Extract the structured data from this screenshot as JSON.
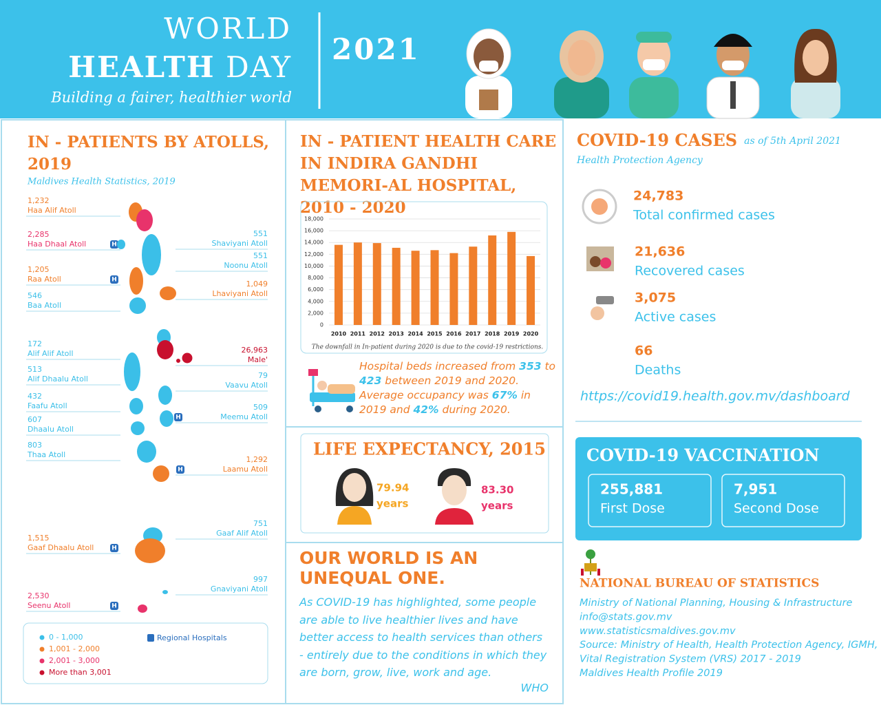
{
  "header": {
    "title_line1": "WORLD",
    "title_bold": "HEALTH",
    "title_rest": "DAY",
    "year": "2021",
    "subtitle": "Building a fairer, healthier world"
  },
  "atolls_panel": {
    "title": "IN - PATIENTS BY ATOLLS, 2019",
    "source": "Maldives Health Statistics, 2019",
    "colors": [
      "#3bbfe8",
      "#f07f2b",
      "#e8336b",
      "#c8102e"
    ],
    "atolls": [
      {
        "count": "1,232",
        "name": "Haa Alif Atoll",
        "level": 1,
        "hospital": false
      },
      {
        "count": "2,285",
        "name": "Haa Dhaal Atoll",
        "level": 2,
        "hospital": true
      },
      {
        "count": "551",
        "name": "Shaviyani Atoll",
        "level": 0,
        "hospital": false
      },
      {
        "count": "551",
        "name": "Noonu Atoll",
        "level": 0,
        "hospital": false
      },
      {
        "count": "1,205",
        "name": "Raa Atoll",
        "level": 1,
        "hospital": true
      },
      {
        "count": "1,049",
        "name": "Lhaviyani Atoll",
        "level": 1,
        "hospital": false
      },
      {
        "count": "546",
        "name": "Baa Atoll",
        "level": 0,
        "hospital": false
      },
      {
        "count": "172",
        "name": "Alif Alif Atoll",
        "level": 0,
        "hospital": false
      },
      {
        "count": "26,963",
        "name": "Male'",
        "level": 3,
        "hospital": false
      },
      {
        "count": "513",
        "name": "Alif Dhaalu Atoll",
        "level": 0,
        "hospital": false
      },
      {
        "count": "79",
        "name": "Vaavu Atoll",
        "level": 0,
        "hospital": false
      },
      {
        "count": "432",
        "name": "Faafu Atoll",
        "level": 0,
        "hospital": false
      },
      {
        "count": "509",
        "name": "Meemu Atoll",
        "level": 0,
        "hospital": true
      },
      {
        "count": "607",
        "name": "Dhaalu Atoll",
        "level": 0,
        "hospital": false
      },
      {
        "count": "803",
        "name": "Thaa Atoll",
        "level": 0,
        "hospital": false
      },
      {
        "count": "1,292",
        "name": "Laamu Atoll",
        "level": 1,
        "hospital": true
      },
      {
        "count": "751",
        "name": "Gaaf Alif Atoll",
        "level": 0,
        "hospital": false
      },
      {
        "count": "1,515",
        "name": "Gaaf Dhaalu Atoll",
        "level": 1,
        "hospital": true
      },
      {
        "count": "997",
        "name": "Gnaviyani Atoll",
        "level": 0,
        "hospital": false
      },
      {
        "count": "2,530",
        "name": "Seenu Atoll",
        "level": 2,
        "hospital": true
      }
    ],
    "legend": [
      "0 - 1,000",
      "1,001 - 2,000",
      "2,001 - 3,000",
      "More than 3,001"
    ],
    "hospital_legend": "Regional Hospitals"
  },
  "chart_data": {
    "type": "bar",
    "title": "IN - PATIENT HEALTH CARE IN  INDIRA GANDHI MEMORI-AL HOSPITAL,  2010 - 2020",
    "categories": [
      "2010",
      "2011",
      "2012",
      "2013",
      "2014",
      "2015",
      "2016",
      "2017",
      "2018",
      "2019",
      "2020"
    ],
    "values": [
      13600,
      14000,
      13900,
      13100,
      12600,
      12700,
      12200,
      13300,
      15200,
      15800,
      11700
    ],
    "color": "#f07f2b",
    "ylim": [
      0,
      18000
    ],
    "yticks": [
      0,
      {
        "value": 2000,
        "label": "2,000"
      },
      {
        "value": 4000,
        "label": "4,000"
      },
      {
        "value": 6000,
        "label": "6,000"
      },
      {
        "value": 8000,
        "label": "8,000"
      },
      {
        "value": 10000,
        "label": "10,000"
      },
      {
        "value": 12000,
        "label": "12,000"
      },
      {
        "value": 14000,
        "label": "14,000"
      },
      {
        "value": 16000,
        "label": "16,000"
      },
      {
        "value": 18000,
        "label": "18,000"
      }
    ],
    "grid": true,
    "note": "The downfall in In-patient during 2020 is due to the covid-19 restrictions."
  },
  "beds": {
    "segments": [
      "Hospital beds increased from ",
      "353",
      " to ",
      "423",
      " between 2019 and 2020. Average occupancy was ",
      "67%",
      " in 2019 and ",
      "42%",
      " during 2020."
    ]
  },
  "life_expectancy": {
    "title": "LIFE EXPECTANCY, 2015",
    "female": "79.94",
    "male": "83.30",
    "unit": "years"
  },
  "unequal": {
    "title": "OUR WORLD IS AN UNEQUAL ONE.",
    "body": "As COVID-19 has highlighted, some people are able to live healthier lives and have better access to health services than others - entirely due to the conditions in which they are born, grow, live, work and age.",
    "source": "WHO"
  },
  "covid": {
    "title": "COVID-19 CASES",
    "date": "as of 5th April 2021",
    "source": "Health Protection Agency",
    "stats": [
      {
        "value": "24,783",
        "label": "Total confirmed cases"
      },
      {
        "value": "21,636",
        "label": "Recovered cases"
      },
      {
        "value": "3,075",
        "label": "Active cases"
      },
      {
        "value": "66",
        "label": "Deaths"
      }
    ],
    "url": "https://covid19.health.gov.mv/dashboard"
  },
  "vaccination": {
    "title": "COVID-19 VACCINATION",
    "doses": [
      {
        "value": "255,881",
        "label": "First Dose"
      },
      {
        "value": "7,951",
        "label": "Second Dose"
      }
    ]
  },
  "nbs": {
    "title": "NATIONAL BUREAU OF STATISTICS",
    "lines": [
      "Ministry of National Planning, Housing & Infrastructure",
      "info@stats.gov.mv",
      "www.statisticsmaldives.gov.mv",
      "Source: Ministry of Health, Health Protection Agency, IGMH,",
      "Vital Registration System (VRS) 2017 - 2019",
      "Maldives Health Profile 2019"
    ]
  }
}
